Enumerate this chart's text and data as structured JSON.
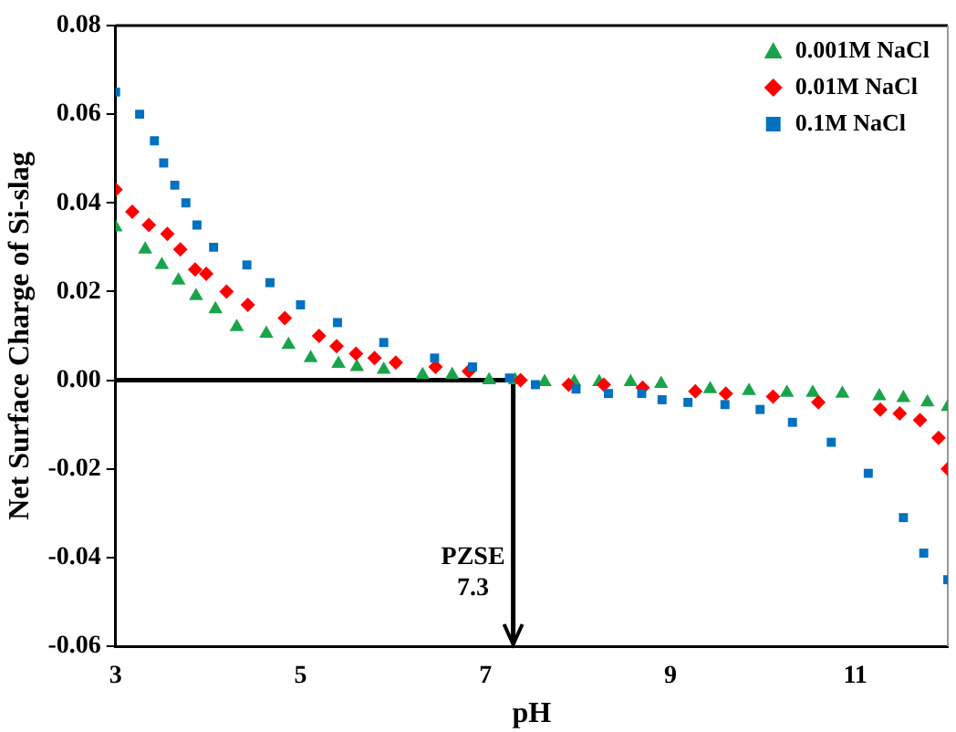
{
  "chart_data": {
    "type": "scatter",
    "xlabel": "pH",
    "ylabel": "Net Surface Charge of Si-slag",
    "xlim": [
      3,
      12
    ],
    "xticks": [
      3,
      5,
      7,
      9,
      11
    ],
    "ylim": [
      -0.06,
      0.08
    ],
    "yticks": [
      -0.06,
      -0.04,
      -0.02,
      {
        "value": 0,
        "label": "0.00"
      },
      0.02,
      0.04,
      0.06,
      0.08
    ],
    "grid": false,
    "legend": "top right",
    "ref_lines": [
      {
        "axis": "y",
        "value": 0,
        "color": "#000000"
      },
      {
        "axis": "x",
        "value": 7.3,
        "color": "#000000"
      }
    ],
    "annotations": [
      {
        "text": "PZSE\n7.3",
        "x": 7.3,
        "y": -0.04
      }
    ],
    "series": [
      {
        "name": "0.001M NaCl",
        "color": "#1aa44a",
        "marker": "triangle",
        "x": [
          3.0,
          3.32,
          3.5,
          3.68,
          3.87,
          4.08,
          4.31,
          4.63,
          4.87,
          5.11,
          5.41,
          5.61,
          5.9,
          6.32,
          6.64,
          7.04,
          7.32,
          7.64,
          7.96,
          8.23,
          8.57,
          8.9,
          9.43,
          9.85,
          10.26,
          10.54,
          10.86,
          11.26,
          11.52,
          11.78,
          12.0
        ],
        "values": [
          0.0345,
          0.0295,
          0.026,
          0.0225,
          0.019,
          0.016,
          0.012,
          0.0105,
          0.008,
          0.005,
          0.0037,
          0.003,
          0.0024,
          0.0012,
          0.0012,
          0.0,
          0.0,
          -0.0004,
          -0.0004,
          -0.0004,
          -0.0004,
          -0.0008,
          -0.002,
          -0.0024,
          -0.0028,
          -0.0028,
          -0.003,
          -0.0036,
          -0.004,
          -0.005,
          -0.006
        ]
      },
      {
        "name": "0.01M NaCl",
        "color": "#ff0000",
        "marker": "diamond",
        "x": [
          3.0,
          3.18,
          3.36,
          3.56,
          3.7,
          3.86,
          3.98,
          4.2,
          4.43,
          4.83,
          5.2,
          5.39,
          5.6,
          5.8,
          6.03,
          6.46,
          6.82,
          7.38,
          7.9,
          8.28,
          8.7,
          9.27,
          9.6,
          10.11,
          10.6,
          11.27,
          11.48,
          11.7,
          11.9,
          12.0
        ],
        "values": [
          0.043,
          0.038,
          0.035,
          0.033,
          0.0295,
          0.025,
          0.024,
          0.02,
          0.017,
          0.014,
          0.01,
          0.0077,
          0.006,
          0.005,
          0.004,
          0.003,
          0.002,
          0.0,
          -0.001,
          -0.001,
          -0.0017,
          -0.0025,
          -0.003,
          -0.0037,
          -0.005,
          -0.0066,
          -0.0075,
          -0.009,
          -0.013,
          -0.02
        ]
      },
      {
        "name": "0.1M NaCl",
        "color": "#0070c0",
        "marker": "square",
        "x": [
          3.0,
          3.26,
          3.42,
          3.52,
          3.64,
          3.76,
          3.88,
          4.06,
          4.42,
          4.67,
          5.0,
          5.4,
          5.9,
          6.45,
          6.86,
          7.26,
          7.54,
          7.98,
          8.33,
          8.69,
          8.91,
          9.19,
          9.59,
          9.97,
          10.32,
          10.74,
          11.14,
          11.52,
          11.74,
          12.0
        ],
        "values": [
          0.065,
          0.06,
          0.054,
          0.049,
          0.044,
          0.04,
          0.035,
          0.03,
          0.026,
          0.022,
          0.017,
          0.013,
          0.0085,
          0.005,
          0.003,
          0.0005,
          -0.001,
          -0.002,
          -0.003,
          -0.003,
          -0.0044,
          -0.005,
          -0.0055,
          -0.0066,
          -0.0095,
          -0.014,
          -0.021,
          -0.031,
          -0.039,
          -0.045
        ]
      }
    ]
  }
}
